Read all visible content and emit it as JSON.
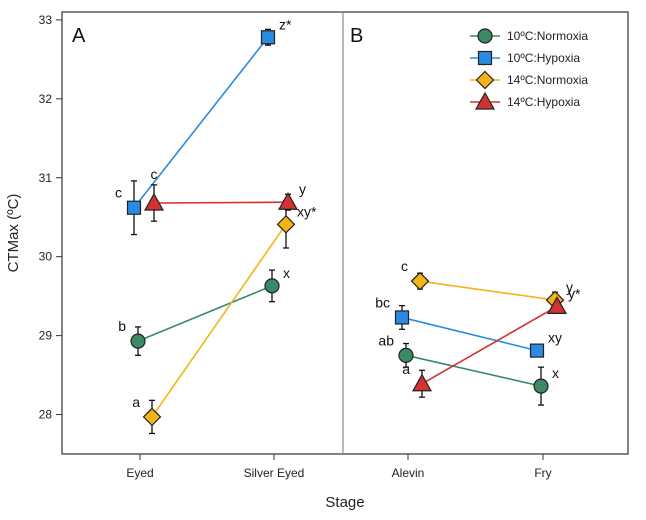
{
  "chart_data": {
    "type": "line",
    "ylabel": "CTMax (ºC)",
    "xlabel": "Stage",
    "ylim": [
      27.5,
      33.1
    ],
    "yticks": [
      "28",
      "29",
      "30",
      "31",
      "32",
      "33"
    ],
    "legend_position": "top-right",
    "series_meta": [
      {
        "name": "10ºC:Normoxia",
        "color": "#3a8a66",
        "marker": "circle"
      },
      {
        "name": "10ºC:Hypoxia",
        "color": "#2a8be0",
        "marker": "square"
      },
      {
        "name": "14ºC:Normoxia",
        "color": "#f2b418",
        "marker": "diamond"
      },
      {
        "name": "14ºC:Hypoxia",
        "color": "#d23232",
        "marker": "triangle"
      }
    ],
    "panels": [
      {
        "label": "A",
        "categories": [
          "Eyed",
          "Silver Eyed"
        ],
        "series": [
          {
            "name": "10ºC:Normoxia",
            "values": [
              28.93,
              29.63
            ],
            "err": [
              0.18,
              0.2
            ],
            "labels": [
              "b",
              "x"
            ]
          },
          {
            "name": "10ºC:Hypoxia",
            "values": [
              30.62,
              32.78
            ],
            "err": [
              0.34,
              0.1
            ],
            "labels": [
              "c",
              "z*"
            ]
          },
          {
            "name": "14ºC:Normoxia",
            "values": [
              27.97,
              30.41
            ],
            "err": [
              0.21,
              0.3
            ],
            "labels": [
              "a",
              "xy*"
            ]
          },
          {
            "name": "14ºC:Hypoxia",
            "values": [
              30.68,
              30.69
            ],
            "err": [
              0.23,
              0.1
            ],
            "labels": [
              "c",
              "y"
            ]
          }
        ]
      },
      {
        "label": "B",
        "categories": [
          "Alevin",
          "Fry"
        ],
        "series": [
          {
            "name": "10ºC:Normoxia",
            "values": [
              28.75,
              28.36
            ],
            "err": [
              0.15,
              0.24
            ],
            "labels": [
              "ab",
              "x"
            ]
          },
          {
            "name": "10ºC:Hypoxia",
            "values": [
              29.23,
              28.81
            ],
            "err": [
              0.15,
              0.05
            ],
            "labels": [
              "bc",
              "xy"
            ]
          },
          {
            "name": "14ºC:Normoxia",
            "values": [
              29.69,
              29.45
            ],
            "err": [
              0.1,
              0.1
            ],
            "labels": [
              "c",
              "y"
            ]
          },
          {
            "name": "14ºC:Hypoxia",
            "values": [
              28.39,
              29.37
            ],
            "err": [
              0.17,
              0.06
            ],
            "labels": [
              "a",
              "y*"
            ]
          }
        ]
      }
    ]
  }
}
